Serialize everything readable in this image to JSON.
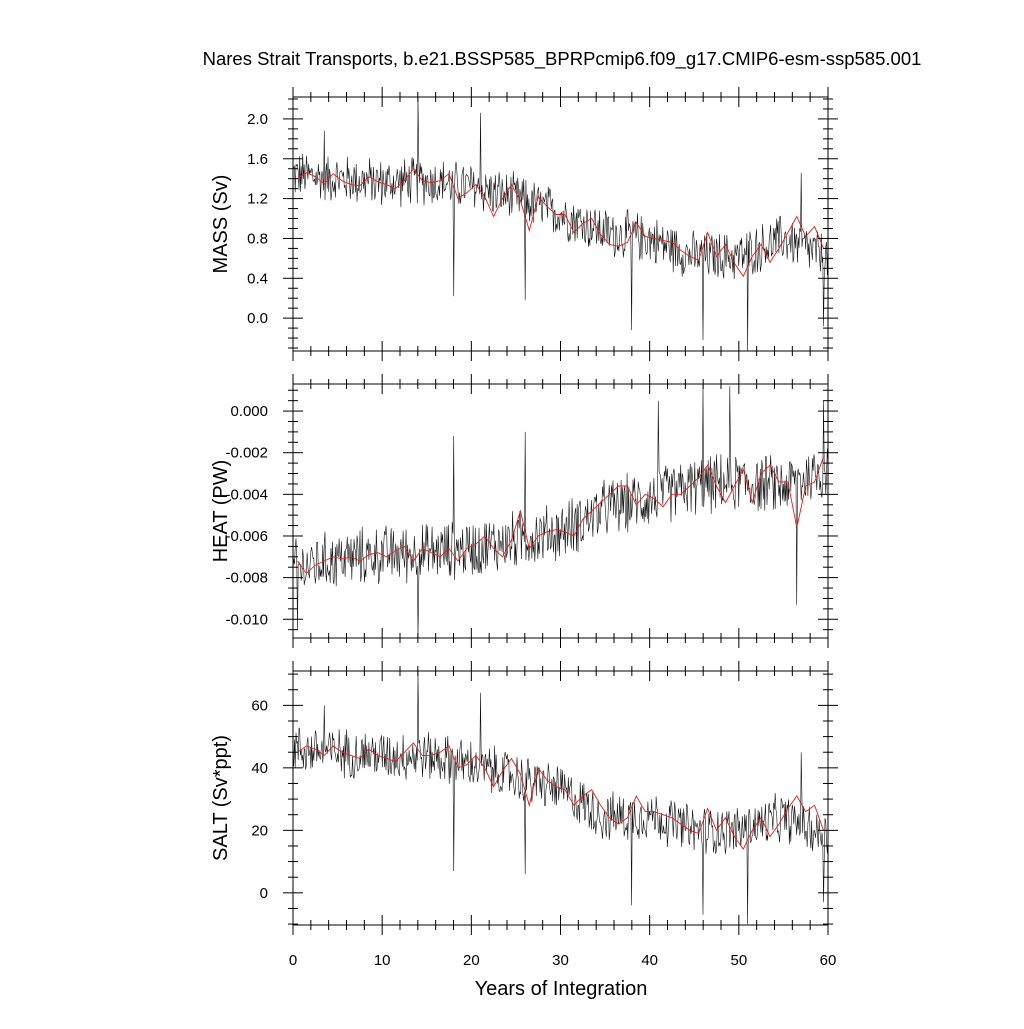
{
  "title": "Nares Strait Transports, b.e21.BSSP585_BPRPcmip6.f09_g17.CMIP6-esm-ssp585.001",
  "xlabel": "Years of Integration",
  "colors": {
    "raw": "#111111",
    "smooth": "#e0201b"
  },
  "chart_data": [
    {
      "type": "line",
      "panel": "mass",
      "ylabel": "MASS (Sv)",
      "xlim": [
        0,
        60
      ],
      "ylim": [
        -0.33,
        2.22
      ],
      "yticks": [
        0.0,
        0.4,
        0.8,
        1.2,
        1.6,
        2.0
      ],
      "ytick_labels": [
        "0.0",
        "0.4",
        "0.8",
        "1.2",
        "1.6",
        "2.0"
      ],
      "xticks": [
        0,
        10,
        20,
        30,
        40,
        50,
        60
      ],
      "series": [
        {
          "style": "monthly",
          "x": [
            0,
            5,
            10,
            15,
            20,
            25,
            30,
            35,
            40,
            45,
            50,
            55,
            60
          ],
          "y": [
            1.44,
            1.4,
            1.36,
            1.38,
            1.32,
            1.2,
            1.05,
            0.86,
            0.8,
            0.62,
            0.62,
            0.8,
            0.6
          ],
          "noise": 0.28,
          "spikes": [
            [
              14,
              2.22
            ],
            [
              18,
              0.22
            ],
            [
              26,
              0.18
            ],
            [
              38,
              -0.12
            ],
            [
              46,
              -0.22
            ],
            [
              51,
              -0.33
            ],
            [
              59.5,
              -0.08
            ],
            [
              3.5,
              1.88
            ],
            [
              21,
              2.06
            ],
            [
              57,
              1.46
            ]
          ]
        },
        {
          "style": "annual-mean",
          "x": [
            0.5,
            1.5,
            2.5,
            3.5,
            4.5,
            5.5,
            6.5,
            7.5,
            8.5,
            9.5,
            10.5,
            11.5,
            12.5,
            13.5,
            14.5,
            15.5,
            16.5,
            17.5,
            18.5,
            19.5,
            20.5,
            21.5,
            22.5,
            23.5,
            24.5,
            25.5,
            26.5,
            27.5,
            28.5,
            29.5,
            30.5,
            31.5,
            32.5,
            33.5,
            34.5,
            35.5,
            36.5,
            37.5,
            38.5,
            39.5,
            40.5,
            41.5,
            42.5,
            43.5,
            44.5,
            45.5,
            46.5,
            47.5,
            48.5,
            49.5,
            50.5,
            51.5,
            52.5,
            53.5,
            54.5,
            55.5,
            56.5,
            57.5,
            58.5,
            59.5
          ],
          "y": [
            1.4,
            1.46,
            1.42,
            1.35,
            1.45,
            1.38,
            1.34,
            1.33,
            1.42,
            1.37,
            1.34,
            1.3,
            1.38,
            1.5,
            1.38,
            1.36,
            1.38,
            1.45,
            1.2,
            1.26,
            1.34,
            1.22,
            1.02,
            1.2,
            1.34,
            1.18,
            0.88,
            1.22,
            1.12,
            1.04,
            1.04,
            0.86,
            0.95,
            1.0,
            0.84,
            0.74,
            0.72,
            0.76,
            0.96,
            0.82,
            0.8,
            0.78,
            0.76,
            0.68,
            0.62,
            0.58,
            0.86,
            0.62,
            0.74,
            0.55,
            0.42,
            0.62,
            0.74,
            0.56,
            0.7,
            0.86,
            1.02,
            0.82,
            0.92,
            0.7
          ]
        }
      ]
    },
    {
      "type": "line",
      "panel": "heat",
      "ylabel": "HEAT (PW)",
      "xlim": [
        0,
        60
      ],
      "ylim": [
        -0.0109,
        0.0013
      ],
      "yticks": [
        -0.01,
        -0.008,
        -0.006,
        -0.004,
        -0.002,
        0.0
      ],
      "ytick_labels": [
        "-0.010",
        "-0.008",
        "-0.006",
        "-0.004",
        "-0.002",
        "0.000"
      ],
      "xticks": [
        0,
        10,
        20,
        30,
        40,
        50,
        60
      ],
      "series": [
        {
          "style": "monthly",
          "x": [
            0,
            5,
            10,
            15,
            20,
            25,
            30,
            35,
            40,
            45,
            50,
            55,
            60
          ],
          "y": [
            -0.0076,
            -0.0071,
            -0.0069,
            -0.0068,
            -0.0066,
            -0.0062,
            -0.0058,
            -0.0047,
            -0.0042,
            -0.0036,
            -0.0034,
            -0.0036,
            -0.0028
          ],
          "noise": 0.0016,
          "spikes": [
            [
              0.5,
              -0.0105
            ],
            [
              14,
              -0.0109
            ],
            [
              18,
              -0.0012
            ],
            [
              26,
              -0.001
            ],
            [
              41,
              0.0005
            ],
            [
              46,
              0.0013
            ],
            [
              49,
              0.0012
            ],
            [
              56.5,
              -0.0093
            ],
            [
              59.5,
              0.0005
            ]
          ]
        },
        {
          "style": "annual-mean",
          "x": [
            0.5,
            1.5,
            2.5,
            3.5,
            4.5,
            5.5,
            6.5,
            7.5,
            8.5,
            9.5,
            10.5,
            11.5,
            12.5,
            13.5,
            14.5,
            15.5,
            16.5,
            17.5,
            18.5,
            19.5,
            20.5,
            21.5,
            22.5,
            23.5,
            24.5,
            25.5,
            26.5,
            27.5,
            28.5,
            29.5,
            30.5,
            31.5,
            32.5,
            33.5,
            34.5,
            35.5,
            36.5,
            37.5,
            38.5,
            39.5,
            40.5,
            41.5,
            42.5,
            43.5,
            44.5,
            45.5,
            46.5,
            47.5,
            48.5,
            49.5,
            50.5,
            51.5,
            52.5,
            53.5,
            54.5,
            55.5,
            56.5,
            57.5,
            58.5,
            59.5
          ],
          "y": [
            -0.0072,
            -0.0078,
            -0.0074,
            -0.0072,
            -0.007,
            -0.0071,
            -0.007,
            -0.0072,
            -0.0069,
            -0.0068,
            -0.007,
            -0.0067,
            -0.0065,
            -0.0072,
            -0.0066,
            -0.0068,
            -0.007,
            -0.0066,
            -0.0072,
            -0.0066,
            -0.0064,
            -0.006,
            -0.0066,
            -0.007,
            -0.0062,
            -0.0048,
            -0.0066,
            -0.006,
            -0.0058,
            -0.0057,
            -0.0058,
            -0.006,
            -0.0052,
            -0.0048,
            -0.0044,
            -0.004,
            -0.0036,
            -0.0036,
            -0.0045,
            -0.004,
            -0.0042,
            -0.0046,
            -0.004,
            -0.004,
            -0.0036,
            -0.0032,
            -0.0026,
            -0.0036,
            -0.0044,
            -0.0036,
            -0.0028,
            -0.0044,
            -0.003,
            -0.0026,
            -0.0034,
            -0.0034,
            -0.0056,
            -0.0036,
            -0.0034,
            -0.0022
          ]
        }
      ]
    },
    {
      "type": "line",
      "panel": "salt",
      "ylabel": "SALT (Sv*ppt)",
      "xlim": [
        0,
        60
      ],
      "ylim": [
        -10.3,
        71
      ],
      "yticks": [
        0,
        20,
        40,
        60
      ],
      "ytick_labels": [
        "0",
        "20",
        "40",
        "60"
      ],
      "xticks": [
        0,
        10,
        20,
        30,
        40,
        50,
        60
      ],
      "series": [
        {
          "style": "monthly",
          "x": [
            0,
            5,
            10,
            15,
            20,
            25,
            30,
            35,
            40,
            45,
            50,
            55,
            60
          ],
          "y": [
            46,
            45,
            44,
            44,
            41,
            37,
            33,
            24,
            25,
            20,
            20,
            24,
            18
          ],
          "noise": 9,
          "spikes": [
            [
              14,
              71
            ],
            [
              18,
              7
            ],
            [
              26,
              6
            ],
            [
              38,
              -4
            ],
            [
              46,
              -7
            ],
            [
              51,
              -10
            ],
            [
              59.5,
              -3
            ],
            [
              3.5,
              60
            ],
            [
              21,
              64
            ],
            [
              57,
              45
            ]
          ]
        },
        {
          "style": "annual-mean",
          "x": [
            0.5,
            1.5,
            2.5,
            3.5,
            4.5,
            5.5,
            6.5,
            7.5,
            8.5,
            9.5,
            10.5,
            11.5,
            12.5,
            13.5,
            14.5,
            15.5,
            16.5,
            17.5,
            18.5,
            19.5,
            20.5,
            21.5,
            22.5,
            23.5,
            24.5,
            25.5,
            26.5,
            27.5,
            28.5,
            29.5,
            30.5,
            31.5,
            32.5,
            33.5,
            34.5,
            35.5,
            36.5,
            37.5,
            38.5,
            39.5,
            40.5,
            41.5,
            42.5,
            43.5,
            44.5,
            45.5,
            46.5,
            47.5,
            48.5,
            49.5,
            50.5,
            51.5,
            52.5,
            53.5,
            54.5,
            55.5,
            56.5,
            57.5,
            58.5,
            59.5
          ],
          "y": [
            45,
            47,
            46,
            44,
            47,
            45,
            44,
            43,
            46,
            44,
            43,
            42,
            45,
            48,
            44,
            44,
            45,
            47,
            40,
            41,
            44,
            40,
            34,
            39,
            43,
            38,
            28,
            40,
            36,
            34,
            33,
            28,
            31,
            33,
            28,
            24,
            22,
            24,
            31,
            26,
            26,
            25,
            24,
            22,
            20,
            19,
            27,
            20,
            24,
            18,
            14,
            20,
            24,
            18,
            22,
            27,
            31,
            26,
            28,
            20
          ]
        }
      ]
    }
  ]
}
